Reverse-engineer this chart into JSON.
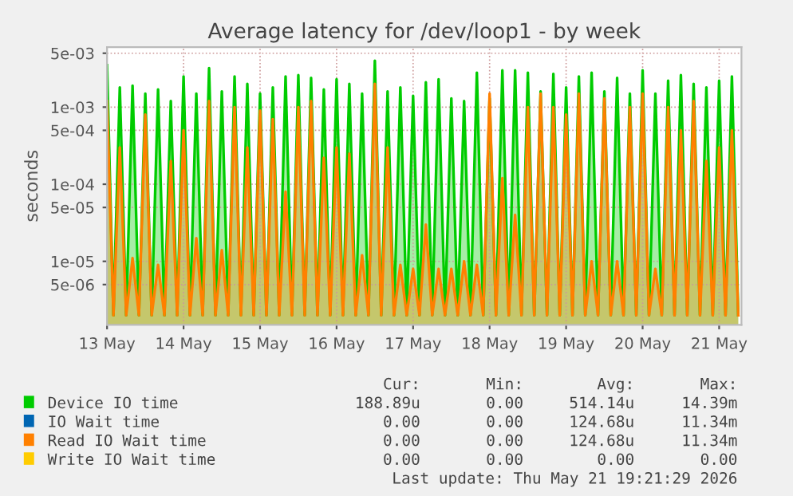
{
  "chart_data": {
    "type": "area",
    "title": "Average latency for /dev/loop1 - by week",
    "ylabel": "seconds",
    "x": [
      "2026-05-13T00:00",
      "2026-05-13T02:00",
      "2026-05-13T04:00",
      "2026-05-13T06:00",
      "2026-05-13T08:00",
      "2026-05-13T10:00",
      "2026-05-13T12:00",
      "2026-05-13T14:00",
      "2026-05-13T16:00",
      "2026-05-13T18:00",
      "2026-05-13T20:00",
      "2026-05-13T22:00",
      "2026-05-14T00:00",
      "2026-05-14T02:00",
      "2026-05-14T04:00",
      "2026-05-14T06:00",
      "2026-05-14T08:00",
      "2026-05-14T10:00",
      "2026-05-14T12:00",
      "2026-05-14T14:00",
      "2026-05-14T16:00",
      "2026-05-14T18:00",
      "2026-05-14T20:00",
      "2026-05-14T22:00",
      "2026-05-15T00:00",
      "2026-05-15T02:00",
      "2026-05-15T04:00",
      "2026-05-15T06:00",
      "2026-05-15T08:00",
      "2026-05-15T10:00",
      "2026-05-15T12:00",
      "2026-05-15T14:00",
      "2026-05-15T16:00",
      "2026-05-15T18:00",
      "2026-05-15T20:00",
      "2026-05-15T22:00",
      "2026-05-16T00:00",
      "2026-05-16T02:00",
      "2026-05-16T04:00",
      "2026-05-16T06:00",
      "2026-05-16T08:00",
      "2026-05-16T10:00",
      "2026-05-16T12:00",
      "2026-05-16T14:00",
      "2026-05-16T16:00",
      "2026-05-16T18:00",
      "2026-05-16T20:00",
      "2026-05-16T22:00",
      "2026-05-17T00:00",
      "2026-05-17T02:00",
      "2026-05-17T04:00",
      "2026-05-17T06:00",
      "2026-05-17T08:00",
      "2026-05-17T10:00",
      "2026-05-17T12:00",
      "2026-05-17T14:00",
      "2026-05-17T16:00",
      "2026-05-17T18:00",
      "2026-05-17T20:00",
      "2026-05-17T22:00",
      "2026-05-18T00:00",
      "2026-05-18T02:00",
      "2026-05-18T04:00",
      "2026-05-18T06:00",
      "2026-05-18T08:00",
      "2026-05-18T10:00",
      "2026-05-18T12:00",
      "2026-05-18T14:00",
      "2026-05-18T16:00",
      "2026-05-18T18:00",
      "2026-05-18T20:00",
      "2026-05-18T22:00",
      "2026-05-19T00:00",
      "2026-05-19T02:00",
      "2026-05-19T04:00",
      "2026-05-19T06:00",
      "2026-05-19T08:00",
      "2026-05-19T10:00",
      "2026-05-19T12:00",
      "2026-05-19T14:00",
      "2026-05-19T16:00",
      "2026-05-19T18:00",
      "2026-05-19T20:00",
      "2026-05-19T22:00",
      "2026-05-20T00:00",
      "2026-05-20T02:00",
      "2026-05-20T04:00",
      "2026-05-20T06:00",
      "2026-05-20T08:00",
      "2026-05-20T10:00",
      "2026-05-20T12:00",
      "2026-05-20T14:00",
      "2026-05-20T16:00",
      "2026-05-20T18:00",
      "2026-05-20T20:00",
      "2026-05-20T22:00",
      "2026-05-21T00:00",
      "2026-05-21T02:00",
      "2026-05-21T04:00",
      "2026-05-21T06:00"
    ],
    "series": [
      {
        "name": "Device IO time",
        "color": "#00cc00",
        "values": [
          0.0035,
          2e-06,
          0.0018,
          2e-06,
          0.0019,
          2e-06,
          0.0015,
          2e-06,
          0.0017,
          2e-06,
          0.0012,
          2e-06,
          0.0025,
          2e-06,
          0.0015,
          2e-06,
          0.0032,
          2e-06,
          0.0016,
          2e-06,
          0.0025,
          2e-06,
          0.002,
          2e-06,
          0.0015,
          2e-06,
          0.0018,
          2e-06,
          0.0025,
          2e-06,
          0.0026,
          2e-06,
          0.0024,
          2e-06,
          0.0017,
          2e-06,
          0.0023,
          2e-06,
          0.002,
          2e-06,
          0.0015,
          2e-06,
          0.004,
          2e-06,
          0.0016,
          2e-06,
          0.0018,
          2e-06,
          0.0014,
          2e-06,
          0.0021,
          2e-06,
          0.0023,
          2e-06,
          0.0013,
          2e-06,
          0.0012,
          2e-06,
          0.0028,
          2e-06,
          0.0013,
          2e-06,
          0.003,
          2e-06,
          0.003,
          2e-06,
          0.0028,
          2e-06,
          0.0016,
          2e-06,
          0.0027,
          2e-06,
          0.0018,
          2e-06,
          0.0025,
          2e-06,
          0.0028,
          2e-06,
          0.0016,
          2e-06,
          0.0024,
          2e-06,
          0.0015,
          2e-06,
          0.003,
          2e-06,
          0.0015,
          2e-06,
          0.0022,
          2e-06,
          0.0026,
          2e-06,
          0.002,
          2e-06,
          0.0018,
          2e-06,
          0.0022,
          2e-06,
          0.0025,
          2e-06
        ]
      },
      {
        "name": "IO Wait time",
        "color": "#0066b3",
        "values": [
          null,
          null,
          null,
          null,
          null,
          null,
          null,
          null,
          null,
          null,
          null,
          null,
          null,
          null,
          null,
          null,
          null,
          null,
          null,
          null,
          null,
          null,
          null,
          null,
          null,
          null,
          null,
          null,
          null,
          null,
          null,
          null,
          null,
          null,
          null,
          null,
          null,
          null,
          null,
          null,
          null,
          null,
          null,
          null,
          null,
          null,
          null,
          null,
          null,
          null,
          null,
          null,
          null,
          null,
          null,
          null,
          null,
          null,
          null,
          null,
          null,
          null,
          null,
          null,
          null,
          null,
          null,
          null,
          null,
          null,
          null,
          null,
          null,
          null,
          null,
          null,
          null,
          null,
          null,
          null,
          null,
          null,
          null,
          null,
          null,
          null,
          null,
          null,
          null,
          null,
          null,
          null,
          null,
          null,
          null,
          null,
          null,
          null,
          null,
          null
        ]
      },
      {
        "name": "Read IO Wait time",
        "color": "#ff8000",
        "values": [
          0.0012,
          2e-06,
          0.0003,
          2e-06,
          1.1e-05,
          2e-06,
          0.0008,
          2e-06,
          9e-06,
          2e-06,
          0.0002,
          2e-06,
          0.0005,
          2e-06,
          2e-05,
          2e-06,
          0.0012,
          2e-06,
          1.4e-05,
          2e-06,
          0.001,
          2e-06,
          0.0003,
          2e-06,
          0.0009,
          2e-06,
          0.0007,
          2e-06,
          8e-05,
          2e-06,
          0.001,
          2e-06,
          0.0012,
          2e-06,
          0.00022,
          2e-06,
          0.0003,
          2e-06,
          0.00025,
          2e-06,
          1.2e-05,
          2e-06,
          0.002,
          2e-06,
          0.0003,
          2e-06,
          9e-06,
          2e-06,
          8e-06,
          2e-06,
          3e-05,
          2e-06,
          8e-06,
          2e-06,
          8e-06,
          2e-06,
          1e-05,
          2e-06,
          9e-06,
          2e-06,
          0.0015,
          2e-06,
          0.00012,
          2e-06,
          4e-05,
          2e-06,
          0.001,
          2e-06,
          0.0015,
          2e-06,
          0.001,
          2e-06,
          0.0008,
          2e-06,
          0.0015,
          2e-06,
          1e-05,
          2e-06,
          0.0013,
          2e-06,
          1e-05,
          2e-06,
          0.001,
          2e-06,
          0.0015,
          2e-06,
          8e-06,
          2e-06,
          0.001,
          2e-06,
          0.0005,
          2e-06,
          0.0012,
          2e-06,
          0.0002,
          2e-06,
          0.0003,
          2e-06,
          0.0005,
          2e-06
        ]
      },
      {
        "name": "Write IO Wait time",
        "color": "#ffcc00",
        "values": [
          null,
          null,
          null,
          null,
          null,
          null,
          null,
          null,
          null,
          null,
          null,
          null,
          null,
          null,
          null,
          null,
          null,
          null,
          null,
          null,
          null,
          null,
          null,
          null,
          null,
          null,
          null,
          null,
          null,
          null,
          null,
          null,
          null,
          null,
          null,
          null,
          null,
          null,
          null,
          null,
          null,
          null,
          null,
          null,
          null,
          null,
          null,
          null,
          null,
          null,
          null,
          null,
          null,
          null,
          null,
          null,
          null,
          null,
          null,
          null,
          null,
          null,
          null,
          null,
          null,
          null,
          null,
          null,
          null,
          null,
          null,
          null,
          null,
          null,
          null,
          null,
          null,
          null,
          null,
          null,
          null,
          null,
          null,
          null,
          null,
          null,
          null,
          null,
          null,
          null,
          null,
          null,
          null,
          null,
          null,
          null,
          null,
          null,
          null,
          null
        ]
      }
    ],
    "log": "y",
    "ylim": [
      1.5e-06,
      0.006
    ],
    "yticks": [
      {
        "value": 5e-06,
        "label": "5e-06"
      },
      {
        "value": 1e-05,
        "label": "1e-05"
      },
      {
        "value": 5e-05,
        "label": "5e-05"
      },
      {
        "value": 0.0001,
        "label": "1e-04"
      },
      {
        "value": 0.0005,
        "label": "5e-04"
      },
      {
        "value": 0.001,
        "label": "1e-03"
      },
      {
        "value": 0.005,
        "label": "5e-03"
      }
    ],
    "xlim": [
      "2026-05-13T00:00",
      "2026-05-21T07:00"
    ],
    "xticks": [
      {
        "value": "2026-05-13",
        "label": "13 May"
      },
      {
        "value": "2026-05-14",
        "label": "14 May"
      },
      {
        "value": "2026-05-15",
        "label": "15 May"
      },
      {
        "value": "2026-05-16",
        "label": "16 May"
      },
      {
        "value": "2026-05-17",
        "label": "17 May"
      },
      {
        "value": "2026-05-18",
        "label": "18 May"
      },
      {
        "value": "2026-05-19",
        "label": "19 May"
      },
      {
        "value": "2026-05-20",
        "label": "20 May"
      },
      {
        "value": "2026-05-21",
        "label": "21 May"
      }
    ],
    "grid": true,
    "legend": "bottom",
    "annotations": [
      "Cur:",
      "Min:",
      "Avg:",
      "Max:",
      "188.89u",
      "0.00",
      "514.14u",
      "14.39m",
      "0.00",
      "0.00",
      "124.68u",
      "11.34m",
      "0.00",
      "0.00",
      "124.68u",
      "11.34m",
      "0.00",
      "0.00",
      "0.00",
      "0.00",
      "Last update: Thu May 21 19:21:29 2026"
    ]
  }
}
